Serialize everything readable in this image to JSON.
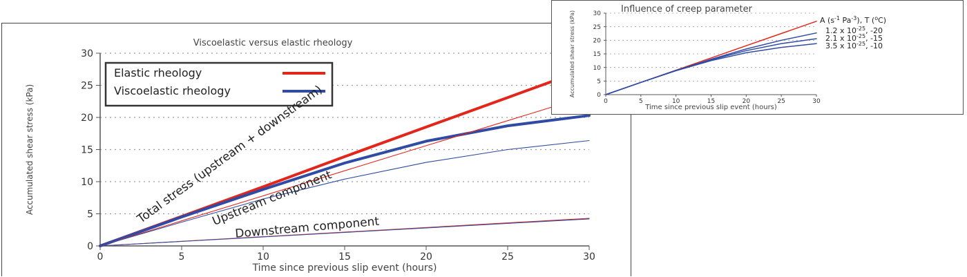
{
  "chart_data": [
    {
      "type": "line",
      "title": "Viscoelastic versus elastic rheology",
      "xlabel": "Time since previous slip event (hours)",
      "ylabel": "Accumulated shear stress (kPa)",
      "xlim": [
        0,
        30
      ],
      "ylim": [
        0,
        30
      ],
      "x_ticks": [
        "0",
        "5",
        "10",
        "15",
        "20",
        "25",
        "30"
      ],
      "y_ticks": [
        "0",
        "5",
        "10",
        "15",
        "20",
        "25",
        "30"
      ],
      "grid": "horizontal dotted",
      "legend_position": "top-left",
      "legend": [
        {
          "label": "Elastic rheology",
          "color": "#e3261c"
        },
        {
          "label": "Viscoelastic rheology",
          "color": "#2f4ba3"
        }
      ],
      "annotations": [
        {
          "text": "Total stress (upstream + downstream)",
          "x": 2.5,
          "y": 3.5,
          "angle_deg": -36
        },
        {
          "text": "Upstream component",
          "x": 7,
          "y": 3.2,
          "angle_deg": -22
        },
        {
          "text": "Downstream component",
          "x": 8.3,
          "y": 1.3,
          "angle_deg": -5
        }
      ],
      "series": [
        {
          "rheology": "elastic",
          "component": "total",
          "color": "#e3261c",
          "width": "thick",
          "x": [
            0,
            5,
            10,
            15,
            20,
            25,
            30
          ],
          "y": [
            0,
            4.6,
            9.2,
            13.9,
            18.5,
            23.1,
            27.7
          ]
        },
        {
          "rheology": "viscoelastic",
          "component": "total",
          "color": "#2f4ba3",
          "width": "thick",
          "x": [
            0,
            5,
            10,
            15,
            20,
            25,
            30
          ],
          "y": [
            0,
            4.5,
            8.8,
            12.9,
            16.3,
            18.7,
            20.3
          ]
        },
        {
          "rheology": "elastic",
          "component": "upstream",
          "color": "#e3261c",
          "width": "thin",
          "x": [
            0,
            5,
            10,
            15,
            20,
            25,
            30
          ],
          "y": [
            0,
            3.9,
            7.8,
            11.7,
            15.6,
            19.5,
            23.4
          ]
        },
        {
          "rheology": "viscoelastic",
          "component": "upstream",
          "color": "#2f4ba3",
          "width": "thin",
          "x": [
            0,
            5,
            10,
            15,
            20,
            25,
            30
          ],
          "y": [
            0,
            3.7,
            7.3,
            10.4,
            13.0,
            15.0,
            16.4
          ]
        },
        {
          "rheology": "elastic",
          "component": "downstream",
          "color": "#e3261c",
          "width": "thin",
          "x": [
            0,
            30
          ],
          "y": [
            0,
            4.3
          ]
        },
        {
          "rheology": "viscoelastic",
          "component": "downstream",
          "color": "#2f4ba3",
          "width": "thin",
          "x": [
            0,
            15,
            30
          ],
          "y": [
            0,
            2.1,
            4.2
          ]
        }
      ]
    },
    {
      "type": "line",
      "title": "Influence of creep parameter",
      "xlabel": "Time since previous slip event (hours)",
      "ylabel": "Accumulated shear stress (kPa)",
      "xlim": [
        0,
        30
      ],
      "ylim": [
        0,
        30
      ],
      "x_ticks": [
        "0",
        "5",
        "10",
        "15",
        "20",
        "25",
        "30"
      ],
      "y_ticks": [
        "0",
        "5",
        "10",
        "15",
        "20",
        "25",
        "30"
      ],
      "grid": "horizontal dotted",
      "legend_header": {
        "text": "A (s",
        "sup1": "-1",
        "mid": " Pa",
        "sup2": "-3",
        "tail": "), T (",
        "sup3": "o",
        "end": "C)"
      },
      "series": [
        {
          "color": "#e3261c",
          "label": "",
          "x": [
            0,
            5,
            10,
            15,
            20,
            25,
            30
          ],
          "y": [
            0,
            4.5,
            9.0,
            13.5,
            18.0,
            22.5,
            27.0
          ]
        },
        {
          "color": "#2f4ba3",
          "label": {
            "base": "1.2 x 10",
            "exp": "-25",
            "tail": ", -20"
          },
          "x": [
            0,
            5,
            10,
            15,
            20,
            25,
            30
          ],
          "y": [
            0,
            4.5,
            8.9,
            13.0,
            16.8,
            20.0,
            22.7
          ]
        },
        {
          "color": "#2f4ba3",
          "label": {
            "base": "2.1 x 10",
            "exp": "-25",
            "tail": ", -15"
          },
          "x": [
            0,
            5,
            10,
            15,
            20,
            25,
            30
          ],
          "y": [
            0,
            4.5,
            8.9,
            12.8,
            16.2,
            18.8,
            20.6
          ]
        },
        {
          "color": "#2f4ba3",
          "label": {
            "base": "3.5 x 10",
            "exp": "-25",
            "tail": ", -10"
          },
          "x": [
            0,
            5,
            10,
            15,
            20,
            25,
            30
          ],
          "y": [
            0,
            4.5,
            8.8,
            12.5,
            15.4,
            17.4,
            18.8
          ]
        }
      ]
    }
  ]
}
